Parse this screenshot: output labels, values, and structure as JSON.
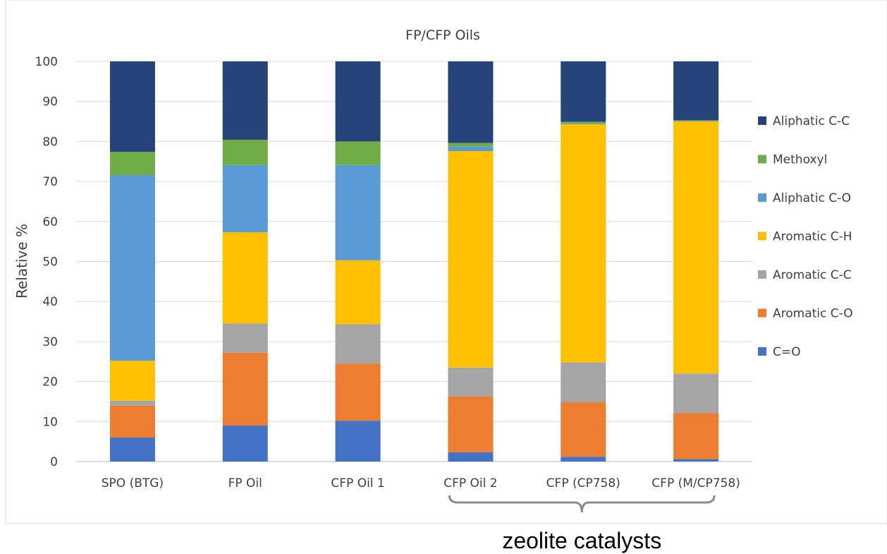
{
  "chart_data": {
    "type": "bar",
    "stacked": true,
    "title": "FP/CFP Oils",
    "ylabel": "Relative %",
    "xlabel": "",
    "ylim": [
      0,
      100
    ],
    "yticks": [
      0,
      10,
      20,
      30,
      40,
      50,
      60,
      70,
      80,
      90,
      100
    ],
    "grid": true,
    "legend_position": "right",
    "categories": [
      "SPO (BTG)",
      "FP Oil",
      "CFP Oil 1",
      "CFP Oil 2",
      "CFP (CP758)",
      "CFP (M/CP758)"
    ],
    "series": [
      {
        "name": "C=O",
        "color": "#4472C4",
        "values": [
          6,
          9,
          10.2,
          2.3,
          1.2,
          0.6
        ]
      },
      {
        "name": "Aromatic C-O",
        "color": "#ED7D31",
        "values": [
          8,
          18.2,
          14.3,
          14,
          13.6,
          11.5
        ]
      },
      {
        "name": "Aromatic C-C",
        "color": "#A5A5A5",
        "values": [
          1.2,
          7.3,
          9.8,
          7.2,
          10,
          9.9
        ]
      },
      {
        "name": "Aromatic C-H",
        "color": "#FFC000",
        "values": [
          10,
          22.8,
          16,
          54.1,
          59.5,
          63
        ]
      },
      {
        "name": "Aliphatic  C-O",
        "color": "#5B9BD5",
        "values": [
          46.4,
          16.8,
          23.8,
          1.1,
          0.2,
          0.1
        ]
      },
      {
        "name": "Methoxyl",
        "color": "#70AD47",
        "values": [
          5.8,
          6.3,
          5.9,
          0.9,
          0.4,
          0.2
        ]
      },
      {
        "name": "Aliphatic  C-C",
        "color": "#264478",
        "values": [
          22.6,
          19.6,
          20,
          20.4,
          15.1,
          14.7
        ]
      }
    ],
    "legend_order": [
      "Aliphatic  C-C",
      "Methoxyl",
      "Aliphatic  C-O",
      "Aromatic C-H",
      "Aromatic C-C",
      "Aromatic C-O",
      "C=O"
    ],
    "annotation": {
      "text": "zeolite catalysts",
      "spans_categories": [
        "CFP Oil 2",
        "CFP (M/CP758)"
      ]
    }
  }
}
